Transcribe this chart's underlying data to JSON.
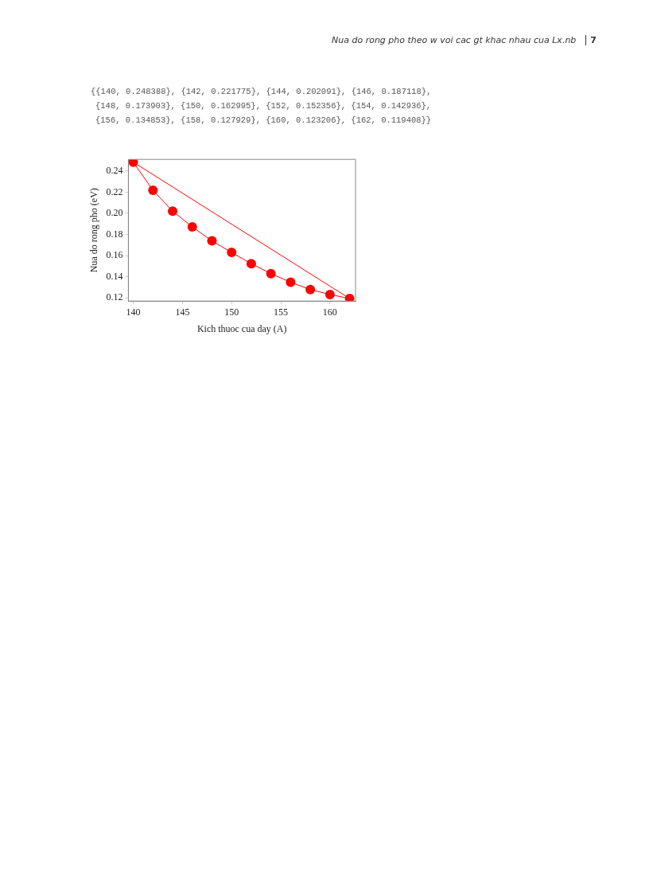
{
  "chart_data": {
    "type": "line",
    "title": "Nua do rong pho theo w voi cac gt khac nhau cua Lx.nb",
    "xlabel": "Kich thuoc cua day (A)",
    "ylabel": "Nua do rong pho (eV)",
    "annotations": [
      "7",
      "{{140, 0.248388}, {142, 0.221775}, {144, 0.202091}, {146, 0.187118},",
      "{148, 0.173903}, {150, 0.162995}, {152, 0.152356}, {154, 0.142936},",
      "{156, 0.134853}, {158, 0.127929}, {160, 0.123206}, {162, 0.119408}}"
    ],
    "xlim": [
      139.5,
      162.6
    ],
    "ylim": [
      0.117,
      0.251
    ],
    "xticks": [
      140,
      145,
      150,
      155,
      160
    ],
    "yticks": [
      {
        "value": 0.12,
        "label": "0.12"
      },
      {
        "value": 0.14,
        "label": "0.14"
      },
      {
        "value": 0.16,
        "label": "0.16"
      },
      {
        "value": 0.18,
        "label": "0.18"
      },
      {
        "value": 0.2,
        "label": "0.20"
      },
      {
        "value": 0.22,
        "label": "0.22"
      },
      {
        "value": 0.24,
        "label": "0.24"
      }
    ],
    "grid": false,
    "legend": false,
    "series": [
      {
        "type": "line",
        "marker": "circle",
        "color": "#ff0000",
        "x": [
          140,
          142,
          144,
          146,
          148,
          150,
          152,
          154,
          156,
          158,
          160,
          162
        ],
        "values": [
          0.248388,
          0.221775,
          0.202091,
          0.187118,
          0.173903,
          0.162995,
          0.152356,
          0.142936,
          0.134853,
          0.127929,
          0.123206,
          0.119408
        ]
      },
      {
        "type": "line",
        "marker": "none",
        "color": "#ff0000",
        "x": [
          140,
          162
        ],
        "values": [
          0.248388,
          0.119408
        ]
      }
    ]
  }
}
